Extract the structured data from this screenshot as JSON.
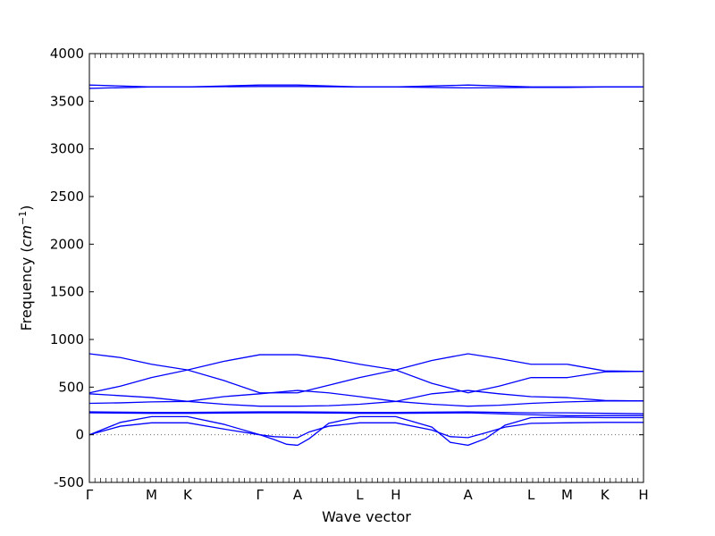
{
  "chart_data": {
    "type": "line",
    "xlabel": "Wave vector",
    "ylabel_text": "Frequency (",
    "ylabel_unit_base": "cm",
    "ylabel_unit_exp": "−1",
    "ylabel_close": ")",
    "ylim": [
      -500,
      4000
    ],
    "yticks": [
      -500,
      0,
      500,
      1000,
      1500,
      2000,
      2500,
      3000,
      3500,
      4000
    ],
    "xlim": [
      0,
      6.6
    ],
    "xticks": [
      {
        "x": 0.0,
        "label": "Γ"
      },
      {
        "x": 0.74,
        "label": "M"
      },
      {
        "x": 1.17,
        "label": "K"
      },
      {
        "x": 2.03,
        "label": "Γ"
      },
      {
        "x": 2.48,
        "label": "A"
      },
      {
        "x": 3.22,
        "label": "L"
      },
      {
        "x": 3.65,
        "label": "H"
      },
      {
        "x": 4.51,
        "label": "A"
      },
      {
        "x": 5.26,
        "label": "L"
      },
      {
        "x": 5.69,
        "label": "M"
      },
      {
        "x": 6.14,
        "label": "K"
      },
      {
        "x": 6.6,
        "label": "H"
      }
    ],
    "zero_line": {
      "y": 0,
      "style": "dotted"
    },
    "line_color": "#0000ff",
    "grid": false,
    "series": [
      {
        "x": [
          0,
          0.74,
          1.17,
          2.03,
          2.48,
          3.22,
          3.65,
          4.51,
          5.26,
          5.69,
          6.14,
          6.6
        ],
        "values": [
          3670,
          3650,
          3650,
          3670,
          3670,
          3650,
          3650,
          3670,
          3650,
          3650,
          3650,
          3650
        ]
      },
      {
        "x": [
          0,
          0.74,
          1.17,
          2.03,
          2.48,
          3.22,
          3.65,
          4.51,
          5.26,
          5.69,
          6.14,
          6.6
        ],
        "values": [
          3635,
          3650,
          3650,
          3655,
          3655,
          3650,
          3650,
          3640,
          3645,
          3645,
          3650,
          3650
        ]
      },
      {
        "x": [
          0,
          0.37,
          0.74,
          1.17,
          1.6,
          2.03,
          2.48,
          2.85,
          3.22,
          3.65,
          4.08,
          4.51,
          4.88,
          5.26,
          5.69,
          6.14,
          6.6
        ],
        "values": [
          850,
          810,
          740,
          680,
          770,
          840,
          840,
          800,
          740,
          680,
          780,
          850,
          800,
          740,
          740,
          670,
          665
        ]
      },
      {
        "x": [
          0,
          0.37,
          0.74,
          1.17,
          1.6,
          2.03,
          2.48,
          2.85,
          3.22,
          3.65,
          4.08,
          4.51,
          4.88,
          5.26,
          5.69,
          6.14,
          6.6
        ],
        "values": [
          440,
          510,
          600,
          680,
          570,
          440,
          440,
          520,
          600,
          680,
          540,
          440,
          510,
          600,
          600,
          660,
          665
        ]
      },
      {
        "x": [
          0,
          0.37,
          0.74,
          1.17,
          1.6,
          2.03,
          2.48,
          2.85,
          3.22,
          3.65,
          4.08,
          4.51,
          4.88,
          5.26,
          5.69,
          6.14,
          6.6
        ],
        "values": [
          430,
          410,
          390,
          350,
          400,
          430,
          465,
          440,
          400,
          350,
          430,
          465,
          430,
          400,
          390,
          360,
          355
        ]
      },
      {
        "x": [
          0,
          0.37,
          0.74,
          1.17,
          1.6,
          2.03,
          2.48,
          2.85,
          3.22,
          3.65,
          4.08,
          4.51,
          4.88,
          5.26,
          5.69,
          6.14,
          6.6
        ],
        "values": [
          330,
          335,
          345,
          350,
          320,
          300,
          300,
          305,
          320,
          350,
          320,
          300,
          310,
          330,
          345,
          355,
          355
        ]
      },
      {
        "x": [
          0,
          0.74,
          1.17,
          2.03,
          2.48,
          3.22,
          3.65,
          4.51,
          5.26,
          5.69,
          6.14,
          6.6
        ],
        "values": [
          240,
          235,
          235,
          240,
          240,
          235,
          235,
          240,
          230,
          230,
          225,
          220
        ]
      },
      {
        "x": [
          0,
          0.74,
          1.17,
          2.03,
          2.48,
          3.22,
          3.65,
          4.51,
          5.26,
          5.69,
          6.14,
          6.6
        ],
        "values": [
          230,
          225,
          225,
          230,
          230,
          225,
          225,
          230,
          210,
          200,
          200,
          200
        ]
      },
      {
        "x": [
          0,
          0.37,
          0.74,
          1.17,
          1.6,
          2.03,
          2.2,
          2.35,
          2.48,
          2.62,
          2.85,
          3.22,
          3.65,
          4.08,
          4.3,
          4.51,
          4.72,
          4.95,
          5.26,
          5.69,
          6.14,
          6.6
        ],
        "values": [
          0,
          130,
          190,
          190,
          110,
          0,
          -50,
          -100,
          -110,
          -40,
          120,
          190,
          190,
          80,
          -80,
          -110,
          -40,
          100,
          180,
          185,
          180,
          180
        ]
      },
      {
        "x": [
          0,
          0.37,
          0.74,
          1.17,
          1.6,
          2.03,
          2.2,
          2.48,
          2.62,
          2.85,
          3.22,
          3.65,
          4.08,
          4.3,
          4.51,
          4.72,
          4.95,
          5.26,
          5.69,
          6.14,
          6.6
        ],
        "values": [
          0,
          90,
          125,
          125,
          60,
          0,
          -20,
          -30,
          30,
          90,
          125,
          125,
          50,
          -20,
          -30,
          20,
          80,
          120,
          125,
          130,
          130
        ]
      }
    ]
  }
}
